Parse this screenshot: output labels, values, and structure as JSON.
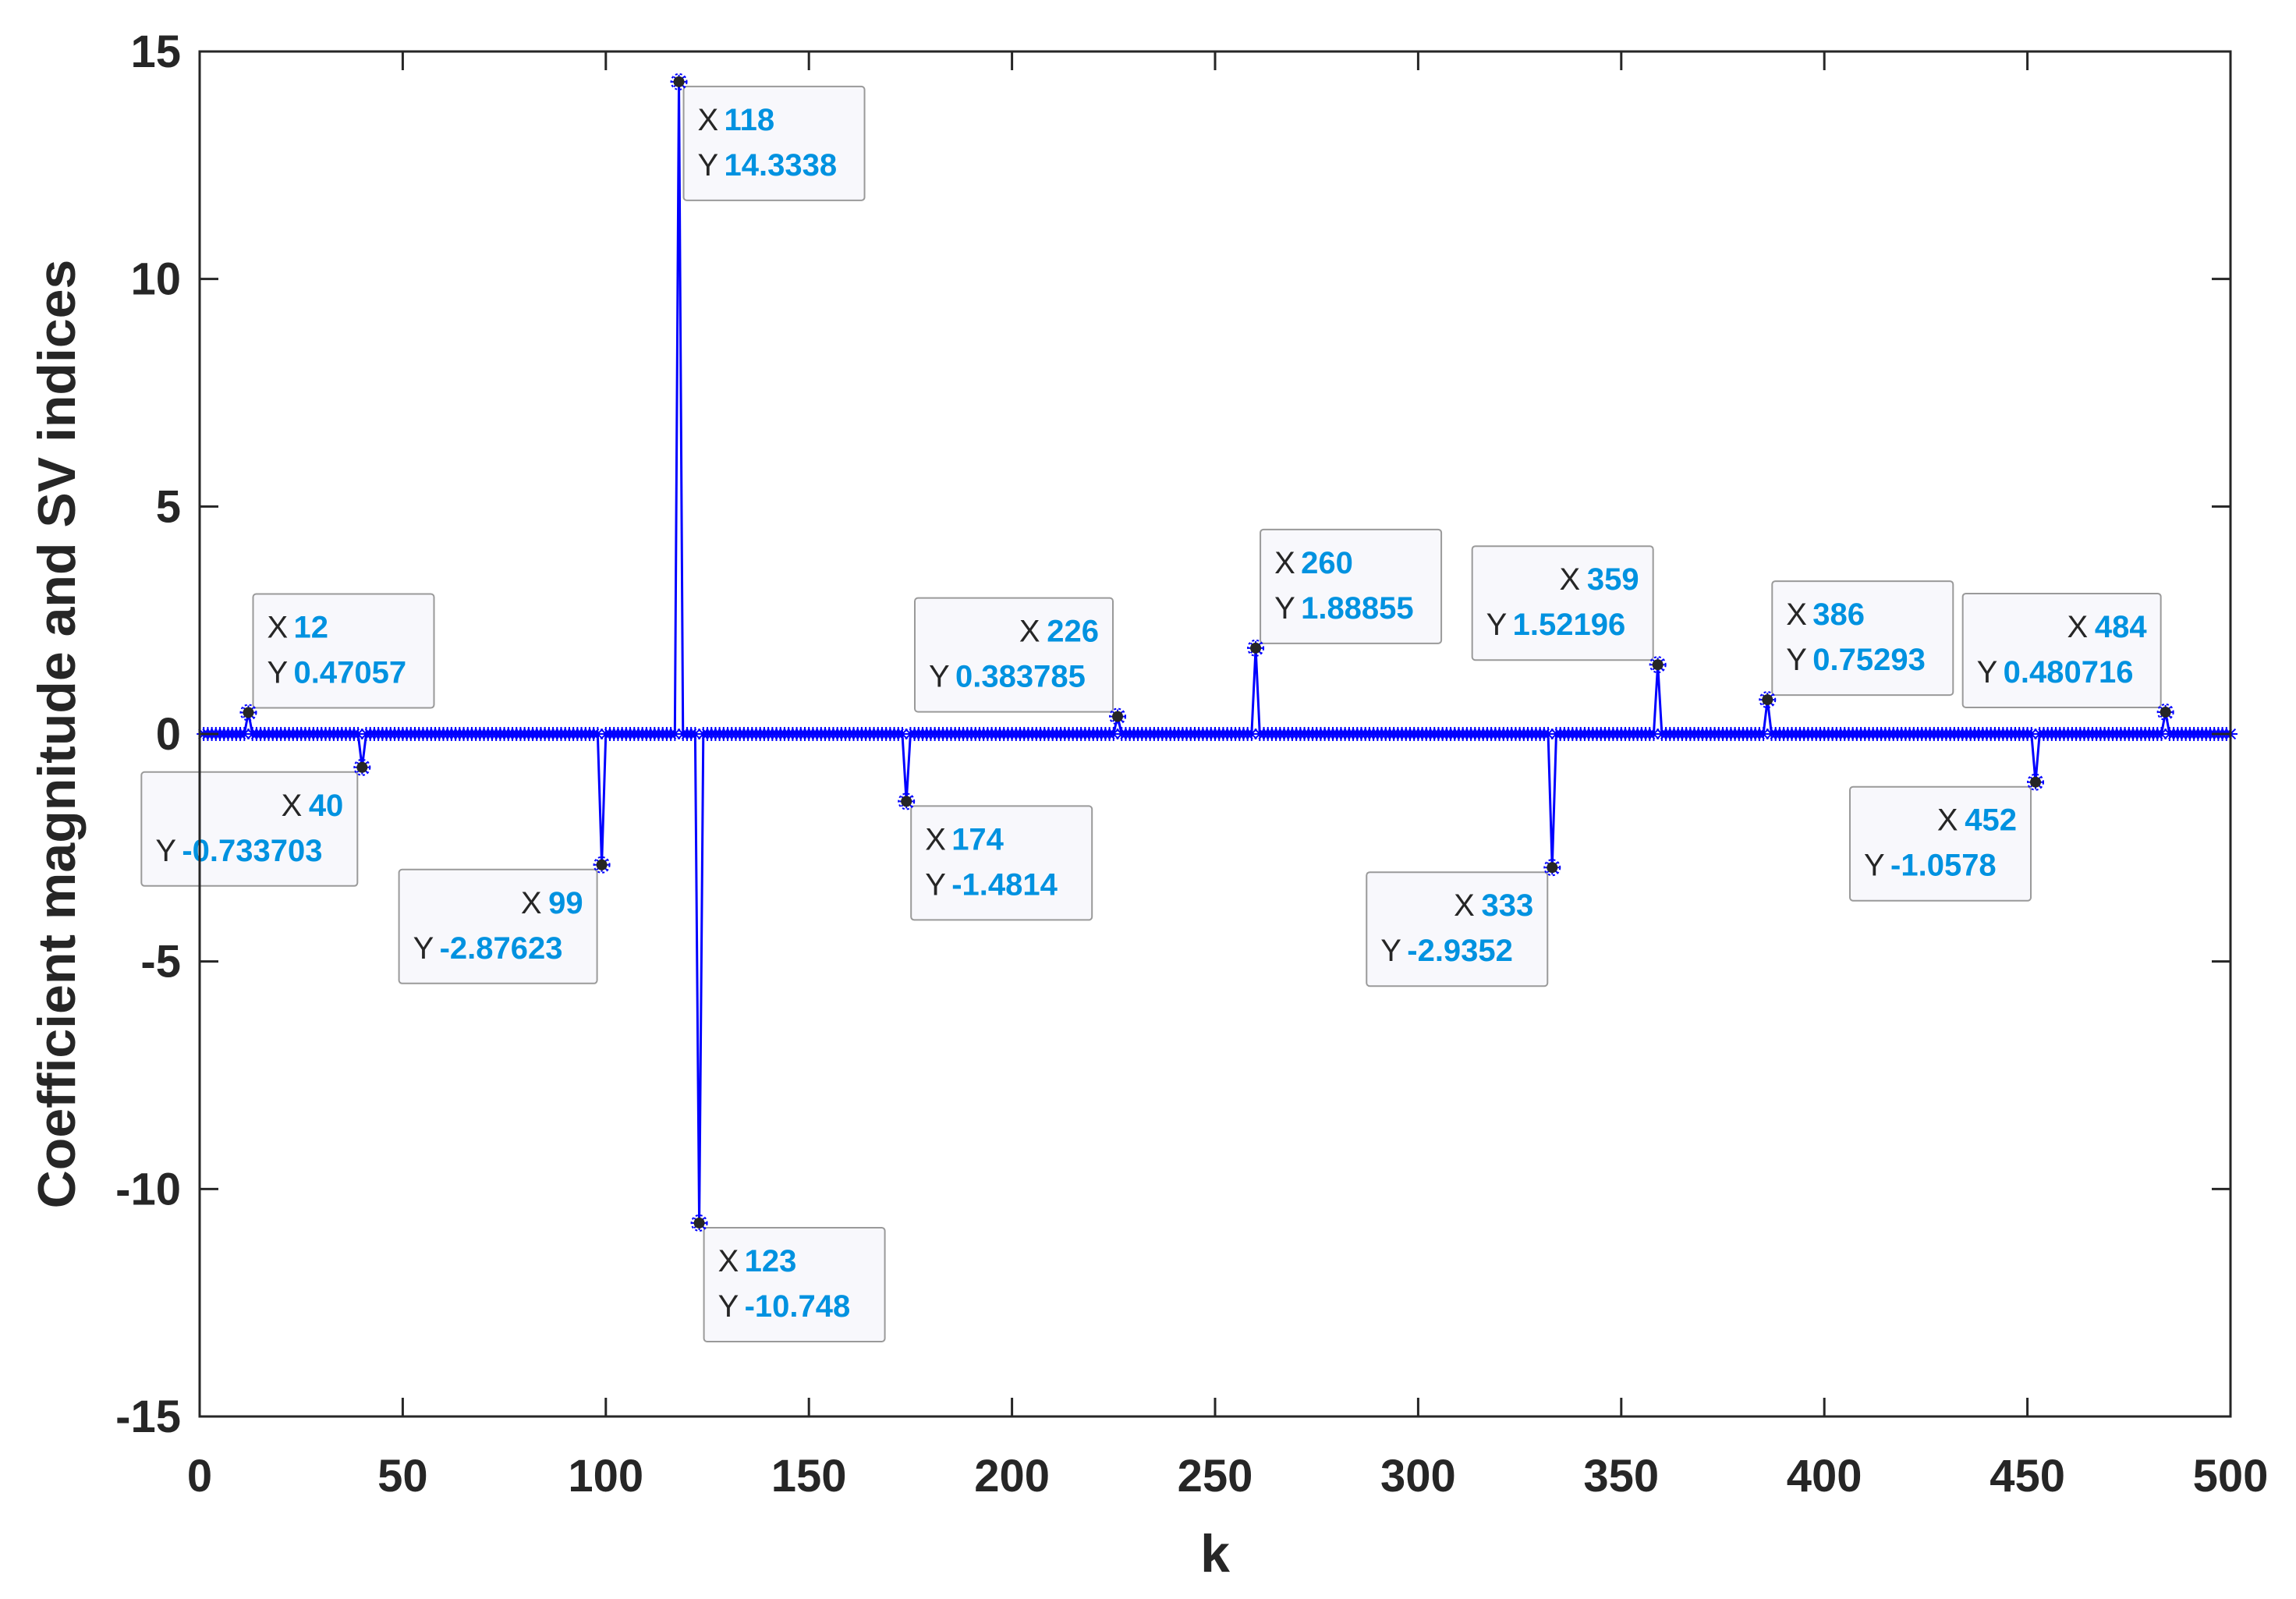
{
  "chart_data": {
    "type": "line",
    "xlabel": "k",
    "ylabel": "Coefficient magnitude and SV indices",
    "xlim": [
      0,
      500
    ],
    "ylim": [
      -15,
      15
    ],
    "xticks": [
      0,
      50,
      100,
      150,
      200,
      250,
      300,
      350,
      400,
      450,
      500
    ],
    "yticks": [
      -15,
      -10,
      -5,
      0,
      5,
      10,
      15
    ],
    "grid": false,
    "line_color": "#0000ff",
    "n_points": 500,
    "points": [
      {
        "x": 12,
        "y": 0.47057,
        "x_label": "12",
        "y_label": "0.47057",
        "side": "right"
      },
      {
        "x": 40,
        "y": -0.733703,
        "x_label": "40",
        "y_label": "-0.733703",
        "side": "left"
      },
      {
        "x": 99,
        "y": -2.87623,
        "x_label": "99",
        "y_label": "-2.87623",
        "side": "left"
      },
      {
        "x": 118,
        "y": 14.3338,
        "x_label": "118",
        "y_label": "14.3338",
        "side": "right"
      },
      {
        "x": 123,
        "y": -10.748,
        "x_label": "123",
        "y_label": "-10.748",
        "side": "right"
      },
      {
        "x": 174,
        "y": -1.4814,
        "x_label": "174",
        "y_label": "-1.4814",
        "side": "right"
      },
      {
        "x": 226,
        "y": 0.383785,
        "x_label": "226",
        "y_label": "0.383785",
        "side": "left"
      },
      {
        "x": 260,
        "y": 1.88855,
        "x_label": "260",
        "y_label": "1.88855",
        "side": "right"
      },
      {
        "x": 333,
        "y": -2.9352,
        "x_label": "333",
        "y_label": "-2.9352",
        "side": "left"
      },
      {
        "x": 359,
        "y": 1.52196,
        "x_label": "359",
        "y_label": "1.52196",
        "side": "left"
      },
      {
        "x": 386,
        "y": 0.75293,
        "x_label": "386",
        "y_label": "0.75293",
        "side": "right"
      },
      {
        "x": 452,
        "y": -1.0578,
        "x_label": "452",
        "y_label": "-1.0578",
        "side": "left"
      },
      {
        "x": 484,
        "y": 0.480716,
        "x_label": "484",
        "y_label": "0.480716",
        "side": "left"
      }
    ],
    "datatip_x_key": "X",
    "datatip_y_key": "Y"
  }
}
